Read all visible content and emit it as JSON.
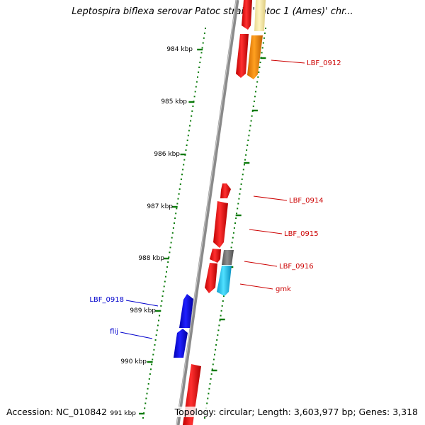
{
  "title": "Leptospira biflexa serovar Patoc strain 'Patoc 1 (Ames)' chr...",
  "footer": {
    "accession": "Accession: NC_010842",
    "topology": "Topology: circular; Length: 3,603,977 bp; Genes: 3,318"
  },
  "scale": {
    "unit": "kbp",
    "labels": [
      "984 kbp",
      "985 kbp",
      "986 kbp",
      "987 kbp",
      "988 kbp",
      "989 kbp",
      "990 kbp",
      "991 kbp"
    ]
  },
  "colors": {
    "backbone": "#8a8a8a",
    "tick": "#0a7a0a",
    "gene_red": "#f00000",
    "gene_orange": "#ff8c00",
    "gene_yellow": "#f5e6a0",
    "gene_cyan": "#1ec8f0",
    "gene_gray": "#707070",
    "gene_blue": "#0000ee",
    "label_red": "#cc0000",
    "label_blue": "#0000cc"
  },
  "gene_labels": [
    {
      "text": "LBF_0912",
      "strand": "forward"
    },
    {
      "text": "LBF_0914",
      "strand": "forward"
    },
    {
      "text": "LBF_0915",
      "strand": "forward"
    },
    {
      "text": "LBF_0916",
      "strand": "forward"
    },
    {
      "text": "gmk",
      "strand": "forward"
    },
    {
      "text": "LBF_0918",
      "strand": "reverse"
    },
    {
      "text": "flij",
      "strand": "reverse"
    }
  ]
}
